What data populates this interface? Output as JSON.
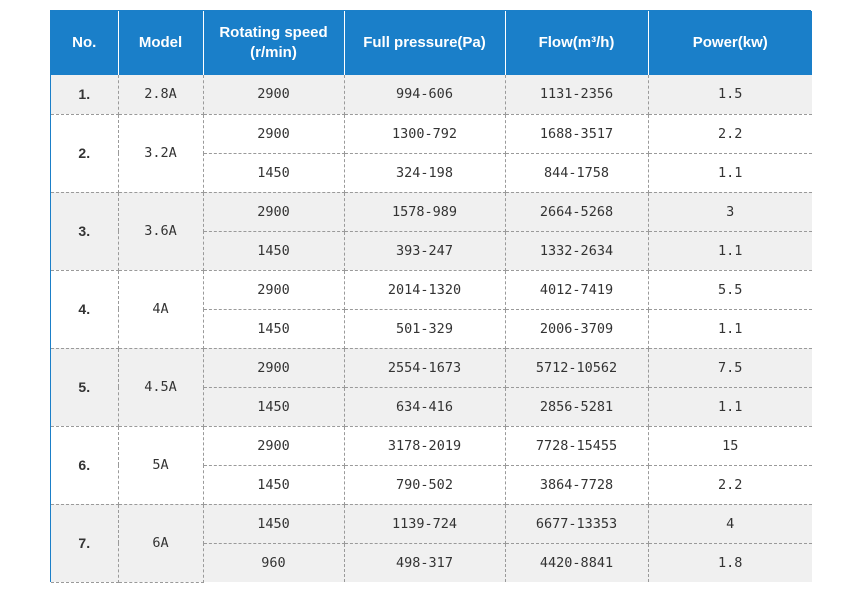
{
  "header": {
    "no": "No.",
    "model": "Model",
    "speed_line1": "Rotating speed",
    "speed_line2": "(r/min)",
    "pressure": "Full pressure(Pa)",
    "flow": "Flow(m³/h)",
    "power": "Power(kw)"
  },
  "rows": [
    {
      "no": "1.",
      "model": "2.8A",
      "entries": [
        {
          "speed": "2900",
          "pressure": "994-606",
          "flow": "1131-2356",
          "power": "1.5"
        }
      ]
    },
    {
      "no": "2.",
      "model": "3.2A",
      "entries": [
        {
          "speed": "2900",
          "pressure": "1300-792",
          "flow": "1688-3517",
          "power": "2.2"
        },
        {
          "speed": "1450",
          "pressure": "324-198",
          "flow": "844-1758",
          "power": "1.1"
        }
      ]
    },
    {
      "no": "3.",
      "model": "3.6A",
      "entries": [
        {
          "speed": "2900",
          "pressure": "1578-989",
          "flow": "2664-5268",
          "power": "3"
        },
        {
          "speed": "1450",
          "pressure": "393-247",
          "flow": "1332-2634",
          "power": "1.1"
        }
      ]
    },
    {
      "no": "4.",
      "model": "4A",
      "entries": [
        {
          "speed": "2900",
          "pressure": "2014-1320",
          "flow": "4012-7419",
          "power": "5.5"
        },
        {
          "speed": "1450",
          "pressure": "501-329",
          "flow": "2006-3709",
          "power": "1.1"
        }
      ]
    },
    {
      "no": "5.",
      "model": "4.5A",
      "entries": [
        {
          "speed": "2900",
          "pressure": "2554-1673",
          "flow": "5712-10562",
          "power": "7.5"
        },
        {
          "speed": "1450",
          "pressure": "634-416",
          "flow": "2856-5281",
          "power": "1.1"
        }
      ]
    },
    {
      "no": "6.",
      "model": "5A",
      "entries": [
        {
          "speed": "2900",
          "pressure": "3178-2019",
          "flow": "7728-15455",
          "power": "15"
        },
        {
          "speed": "1450",
          "pressure": "790-502",
          "flow": "3864-7728",
          "power": "2.2"
        }
      ]
    },
    {
      "no": "7.",
      "model": "6A",
      "entries": [
        {
          "speed": "1450",
          "pressure": "1139-724",
          "flow": "6677-13353",
          "power": "4"
        },
        {
          "speed": "960",
          "pressure": "498-317",
          "flow": "4420-8841",
          "power": "1.8"
        }
      ]
    }
  ]
}
